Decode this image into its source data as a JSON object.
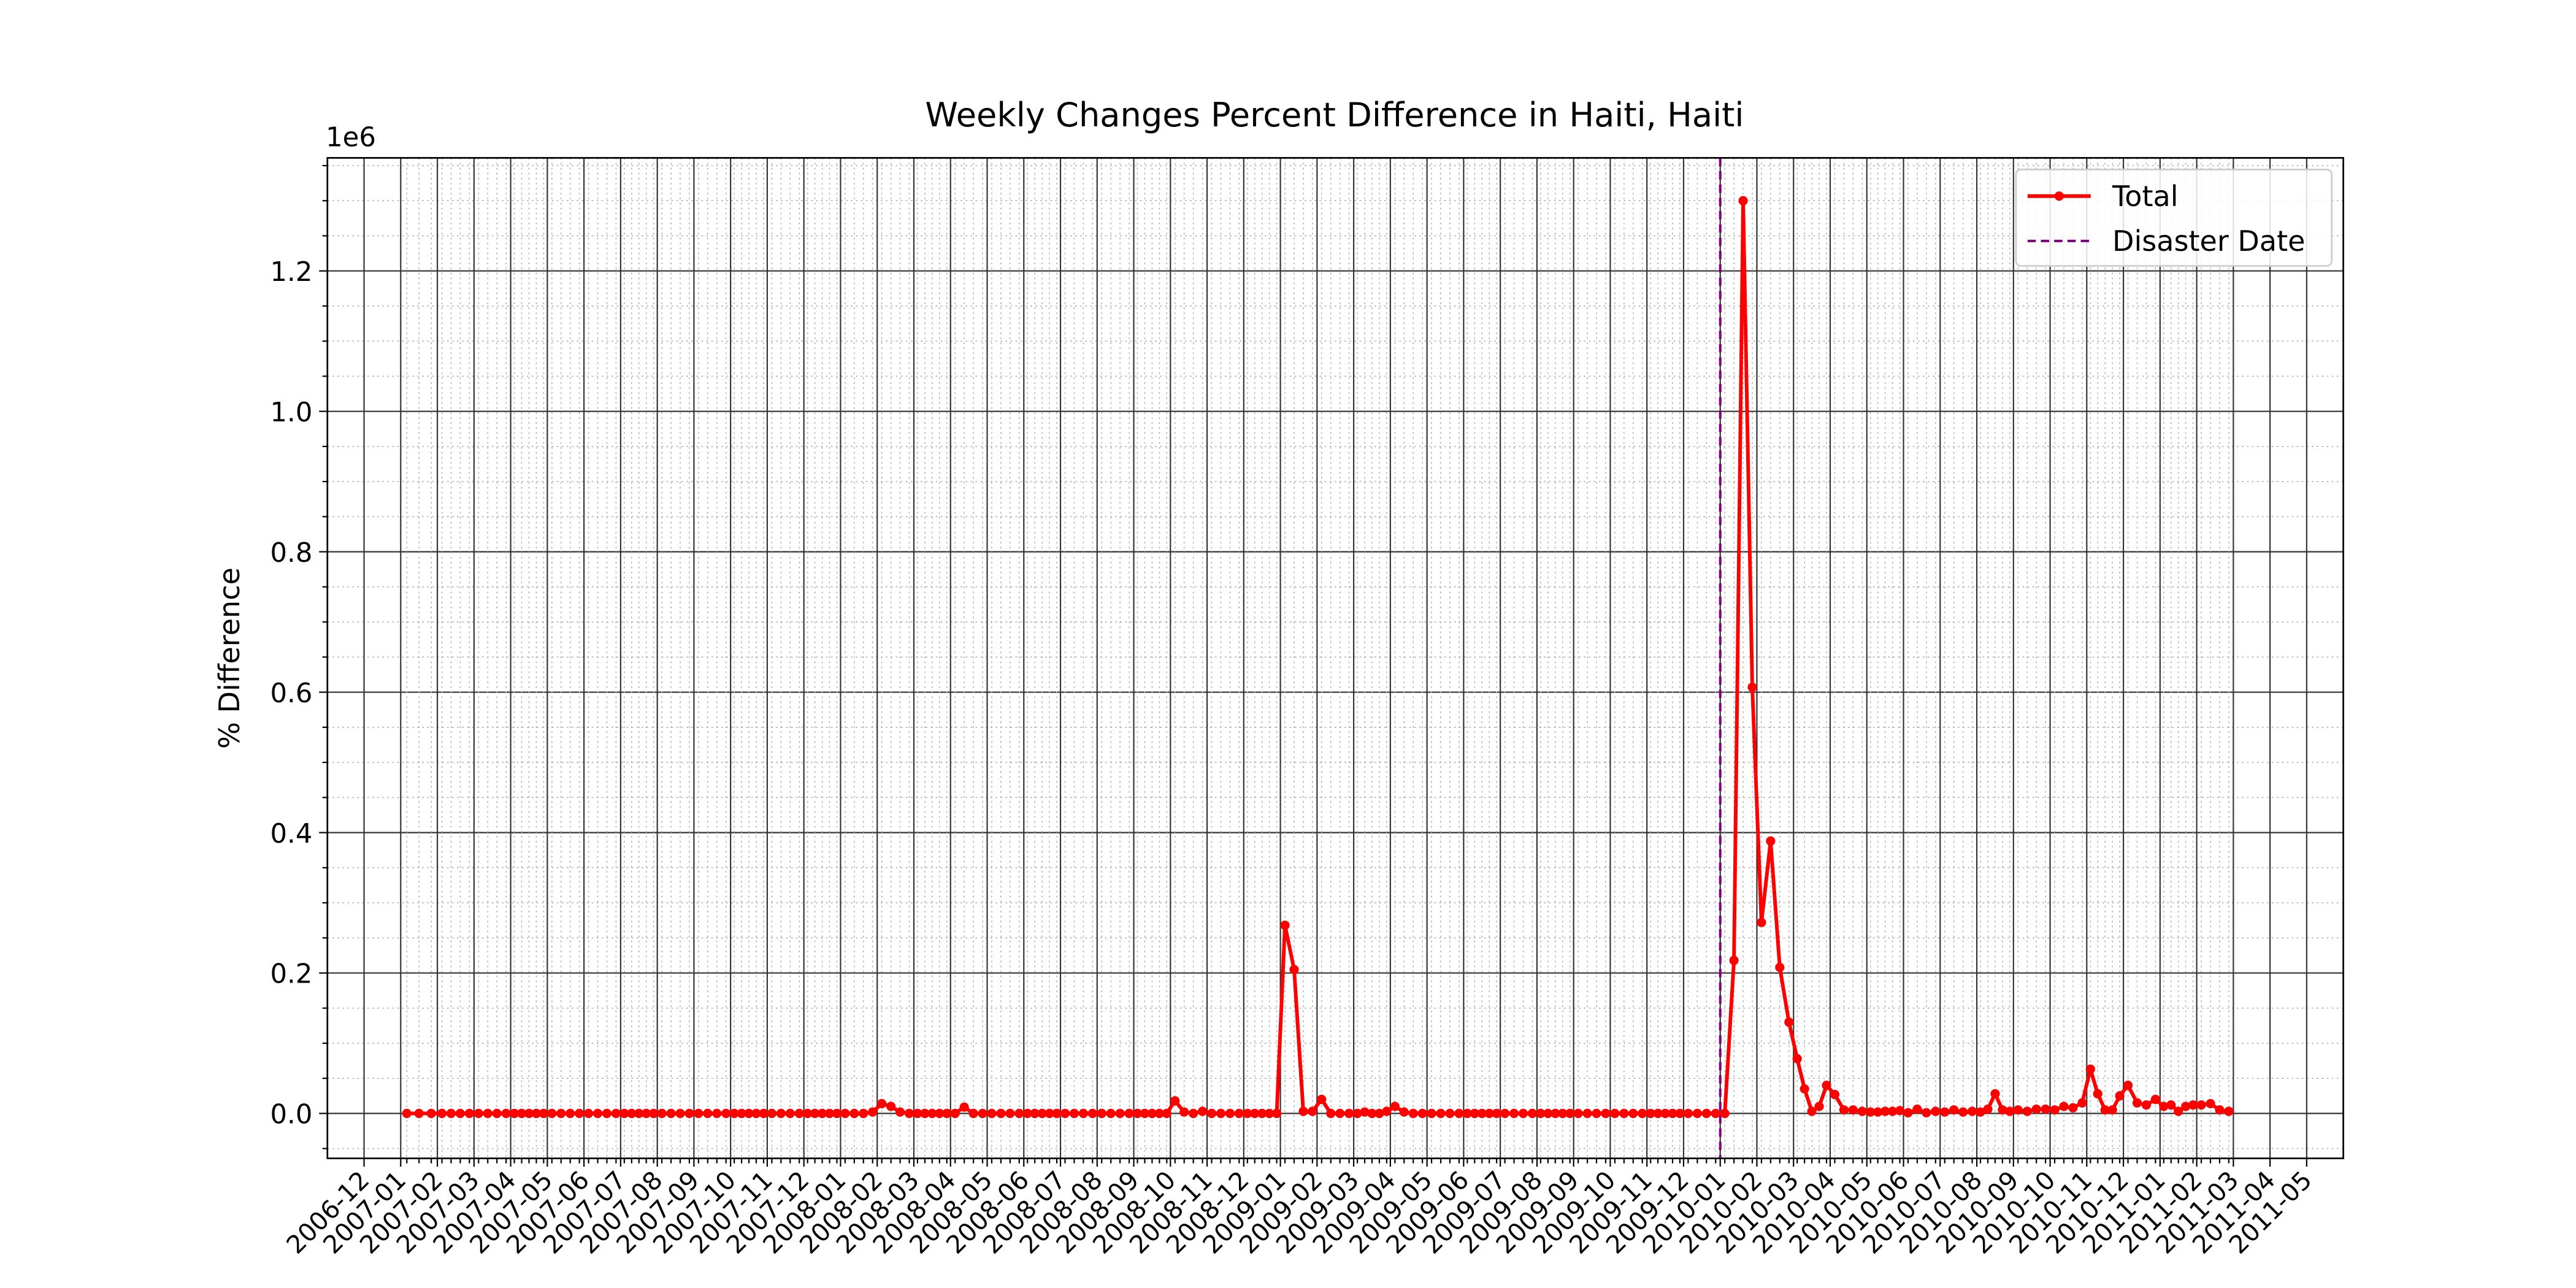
{
  "chart_data": {
    "type": "line",
    "title": "Weekly Changes Percent Difference in Haiti, Haiti",
    "y_label": "% Difference",
    "y_offset_label": "1e6",
    "series": [
      {
        "name": "Total",
        "color": "#ff0000",
        "x": [
          "2007-01",
          "2007-01",
          "2007-01",
          "2007-02",
          "2007-02",
          "2007-02",
          "2007-02",
          "2007-03",
          "2007-03",
          "2007-03",
          "2007-03",
          "2007-04",
          "2007-04",
          "2007-04",
          "2007-04",
          "2007-04",
          "2007-05",
          "2007-05",
          "2007-05",
          "2007-05",
          "2007-06",
          "2007-06",
          "2007-06",
          "2007-06",
          "2007-07",
          "2007-07",
          "2007-07",
          "2007-07",
          "2007-07",
          "2007-08",
          "2007-08",
          "2007-08",
          "2007-08",
          "2007-09",
          "2007-09",
          "2007-09",
          "2007-09",
          "2007-10",
          "2007-10",
          "2007-10",
          "2007-10",
          "2007-10",
          "2007-11",
          "2007-11",
          "2007-11",
          "2007-11",
          "2007-12",
          "2007-12",
          "2007-12",
          "2007-12",
          "2007-12",
          "2008-01",
          "2008-01",
          "2008-01",
          "2008-01",
          "2008-02",
          "2008-02",
          "2008-02",
          "2008-02",
          "2008-03",
          "2008-03",
          "2008-03",
          "2008-03",
          "2008-03",
          "2008-04",
          "2008-04",
          "2008-04",
          "2008-04",
          "2008-05",
          "2008-05",
          "2008-05",
          "2008-05",
          "2008-06",
          "2008-06",
          "2008-06",
          "2008-06",
          "2008-06",
          "2008-07",
          "2008-07",
          "2008-07",
          "2008-07",
          "2008-08",
          "2008-08",
          "2008-08",
          "2008-08",
          "2008-09",
          "2008-09",
          "2008-09",
          "2008-09",
          "2008-09",
          "2008-10",
          "2008-10",
          "2008-10",
          "2008-10",
          "2008-11",
          "2008-11",
          "2008-11",
          "2008-11",
          "2008-12",
          "2008-12",
          "2008-12",
          "2008-12",
          "2008-12",
          "2009-01",
          "2009-01",
          "2009-01",
          "2009-01",
          "2009-02",
          "2009-02",
          "2009-02",
          "2009-02",
          "2009-03",
          "2009-03",
          "2009-03",
          "2009-03",
          "2009-03",
          "2009-04",
          "2009-04",
          "2009-04",
          "2009-04",
          "2009-05",
          "2009-05",
          "2009-05",
          "2009-05",
          "2009-06",
          "2009-06",
          "2009-06",
          "2009-06",
          "2009-06",
          "2009-07",
          "2009-07",
          "2009-07",
          "2009-07",
          "2009-08",
          "2009-08",
          "2009-08",
          "2009-08",
          "2009-08",
          "2009-09",
          "2009-09",
          "2009-09",
          "2009-09",
          "2009-10",
          "2009-10",
          "2009-10",
          "2009-10",
          "2009-11",
          "2009-11",
          "2009-11",
          "2009-11",
          "2009-11",
          "2009-12",
          "2009-12",
          "2009-12",
          "2009-12",
          "2010-01",
          "2010-01",
          "2010-01",
          "2010-01",
          "2010-02",
          "2010-02",
          "2010-02",
          "2010-02",
          "2010-03",
          "2010-03",
          "2010-03",
          "2010-03",
          "2010-03",
          "2010-04",
          "2010-04",
          "2010-04",
          "2010-04",
          "2010-05",
          "2010-05",
          "2010-05",
          "2010-05",
          "2010-05",
          "2010-06",
          "2010-06",
          "2010-06",
          "2010-06",
          "2010-07",
          "2010-07",
          "2010-07",
          "2010-07",
          "2010-08",
          "2010-08",
          "2010-08",
          "2010-08",
          "2010-08",
          "2010-09",
          "2010-09",
          "2010-09",
          "2010-09",
          "2010-10",
          "2010-10",
          "2010-10",
          "2010-10",
          "2010-11",
          "2010-11",
          "2010-11",
          "2010-11",
          "2010-11",
          "2010-12",
          "2010-12",
          "2010-12",
          "2010-12",
          "2011-01",
          "2011-01",
          "2011-01",
          "2011-01",
          "2011-01",
          "2011-02",
          "2011-02",
          "2011-02",
          "2011-02"
        ],
        "values": [
          0,
          0,
          0,
          0,
          0,
          0,
          0,
          0,
          0,
          0,
          0,
          0,
          0,
          0,
          0,
          0,
          0,
          0,
          0,
          0,
          0,
          0,
          0,
          0,
          0,
          0,
          0,
          0,
          0,
          0,
          0,
          0,
          0,
          0,
          0,
          0,
          0,
          0,
          0,
          0,
          0,
          0,
          0,
          0,
          0,
          0,
          0,
          0,
          0,
          0,
          0,
          0,
          0,
          0,
          2000,
          14000,
          10000,
          2000,
          0,
          0,
          0,
          0,
          0,
          0,
          0,
          9000,
          0,
          0,
          0,
          0,
          0,
          0,
          0,
          0,
          0,
          0,
          0,
          0,
          0,
          0,
          0,
          0,
          0,
          0,
          0,
          0,
          0,
          0,
          0,
          0,
          18000,
          2000,
          0,
          3000,
          0,
          0,
          0,
          0,
          0,
          0,
          0,
          0,
          0,
          268000,
          205000,
          3000,
          3000,
          20000,
          0,
          0,
          0,
          0,
          2000,
          0,
          0,
          3000,
          10000,
          2000,
          0,
          0,
          0,
          0,
          0,
          0,
          0,
          0,
          0,
          0,
          0,
          0,
          0,
          0,
          0,
          0,
          0,
          0,
          0,
          0,
          0,
          0,
          0,
          0,
          0,
          0,
          0,
          0,
          0,
          0,
          0,
          0,
          0,
          0,
          0,
          0,
          0,
          0,
          218000,
          1300000,
          607000,
          272000,
          388000,
          208000,
          130000,
          78000,
          35000,
          3000,
          10000,
          40000,
          27000,
          5000,
          5000,
          3000,
          2000,
          2000,
          3000,
          3000,
          4000,
          1000,
          6000,
          1000,
          3000,
          2000,
          5000,
          2000,
          3000,
          2000,
          6000,
          28000,
          5000,
          3000,
          5000,
          3000,
          6000,
          6000,
          5000,
          10000,
          8000,
          15000,
          63000,
          28000,
          5000,
          5000,
          25000,
          40000,
          15000,
          12000,
          20000,
          10000,
          12000,
          3000,
          10000,
          12000,
          12000,
          14000,
          5000,
          3000
        ]
      }
    ],
    "vlines": [
      {
        "name": "Disaster Date",
        "x": "2010-01",
        "color": "#800080"
      }
    ],
    "xlim": [
      "2006-11",
      "2011-06"
    ],
    "xticks": [
      "2006-12",
      "2007-01",
      "2007-02",
      "2007-03",
      "2007-04",
      "2007-05",
      "2007-06",
      "2007-07",
      "2007-08",
      "2007-09",
      "2007-10",
      "2007-11",
      "2007-12",
      "2008-01",
      "2008-02",
      "2008-03",
      "2008-04",
      "2008-05",
      "2008-06",
      "2008-07",
      "2008-08",
      "2008-09",
      "2008-10",
      "2008-11",
      "2008-12",
      "2009-01",
      "2009-02",
      "2009-03",
      "2009-04",
      "2009-05",
      "2009-06",
      "2009-07",
      "2009-08",
      "2009-09",
      "2009-10",
      "2009-11",
      "2009-12",
      "2010-01",
      "2010-02",
      "2010-03",
      "2010-04",
      "2010-05",
      "2010-06",
      "2010-07",
      "2010-08",
      "2010-09",
      "2010-10",
      "2010-11",
      "2010-12",
      "2011-01",
      "2011-02",
      "2011-03",
      "2011-04",
      "2011-05"
    ],
    "ylim": [
      -64000,
      1361000
    ],
    "yticks": [
      {
        "value": 0,
        "label": "0.0"
      },
      {
        "value": 200000,
        "label": "0.2"
      },
      {
        "value": 400000,
        "label": "0.4"
      },
      {
        "value": 600000,
        "label": "0.6"
      },
      {
        "value": 800000,
        "label": "0.8"
      },
      {
        "value": 1000000,
        "label": "1.0"
      },
      {
        "value": 1200000,
        "label": "1.2"
      }
    ],
    "yminorticks": [
      -50000,
      50000,
      100000,
      150000,
      250000,
      300000,
      350000,
      450000,
      500000,
      550000,
      650000,
      700000,
      750000,
      850000,
      900000,
      950000,
      1050000,
      1100000,
      1150000,
      1250000,
      1300000,
      1350000
    ],
    "grid": true,
    "legend": "upper right"
  }
}
